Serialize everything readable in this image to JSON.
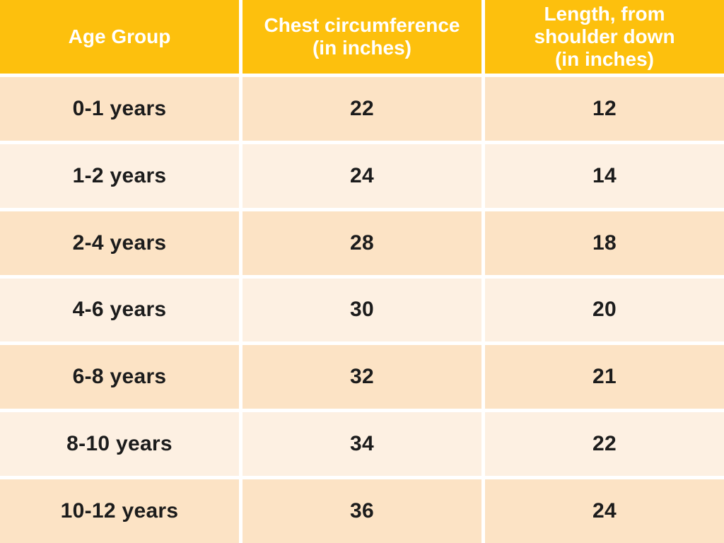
{
  "table": {
    "headers": {
      "age": "Age Group",
      "chest": "Chest circumference\n(in inches)",
      "length": "Length, from\nshoulder down\n(in inches)"
    },
    "rows": [
      {
        "age": "0-1 years",
        "chest": "22",
        "length": "12"
      },
      {
        "age": "1-2 years",
        "chest": "24",
        "length": "14"
      },
      {
        "age": "2-4 years",
        "chest": "28",
        "length": "18"
      },
      {
        "age": "4-6 years",
        "chest": "30",
        "length": "20"
      },
      {
        "age": "6-8 years",
        "chest": "32",
        "length": "21"
      },
      {
        "age": "8-10 years",
        "chest": "34",
        "length": "22"
      },
      {
        "age": "10-12 years",
        "chest": "36",
        "length": "24"
      }
    ]
  },
  "chart_data": {
    "type": "table",
    "title": "",
    "columns": [
      "Age Group",
      "Chest circumference (in inches)",
      "Length, from shoulder down (in inches)"
    ],
    "rows": [
      [
        "0-1 years",
        22,
        12
      ],
      [
        "1-2 years",
        24,
        14
      ],
      [
        "2-4 years",
        28,
        18
      ],
      [
        "4-6 years",
        30,
        20
      ],
      [
        "6-8 years",
        32,
        21
      ],
      [
        "8-10 years",
        34,
        22
      ],
      [
        "10-12 years",
        36,
        24
      ]
    ]
  },
  "colors": {
    "header_bg": "#fdc00d",
    "header_text": "#ffffff",
    "row_odd_bg": "#fce3c5",
    "row_even_bg": "#fdf0e2",
    "cell_text": "#1c1c1c",
    "grid": "#ffffff"
  }
}
